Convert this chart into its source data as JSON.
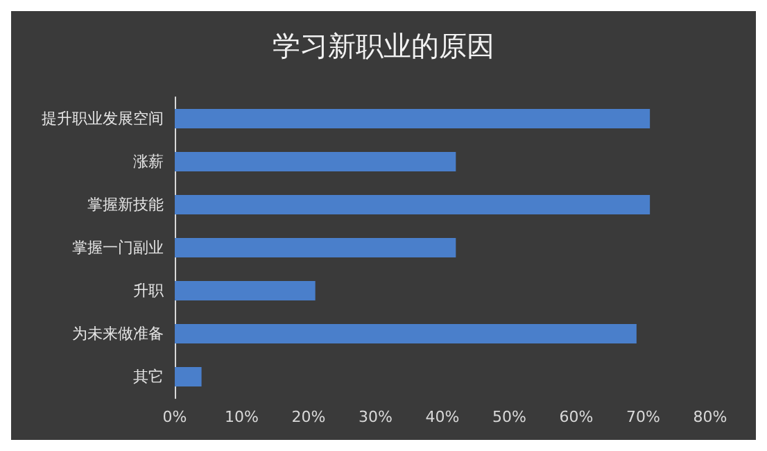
{
  "chart_data": {
    "type": "bar",
    "orientation": "horizontal",
    "title": "学习新职业的原因",
    "categories": [
      "提升职业发展空间",
      "涨薪",
      "掌握新技能",
      "掌握一门副业",
      "升职",
      "为未来做准备",
      "其它"
    ],
    "values": [
      71,
      42,
      71,
      42,
      21,
      69,
      4
    ],
    "color": "#4a7fcb",
    "xlim": [
      0,
      80
    ],
    "xticks": [
      {
        "value": 0,
        "label": "0%"
      },
      {
        "value": 10,
        "label": "10%"
      },
      {
        "value": 20,
        "label": "20%"
      },
      {
        "value": 30,
        "label": "30%"
      },
      {
        "value": 40,
        "label": "40%"
      },
      {
        "value": 50,
        "label": "50%"
      },
      {
        "value": 60,
        "label": "60%"
      },
      {
        "value": 70,
        "label": "70%"
      },
      {
        "value": 80,
        "label": "80%"
      }
    ],
    "grid": false
  }
}
